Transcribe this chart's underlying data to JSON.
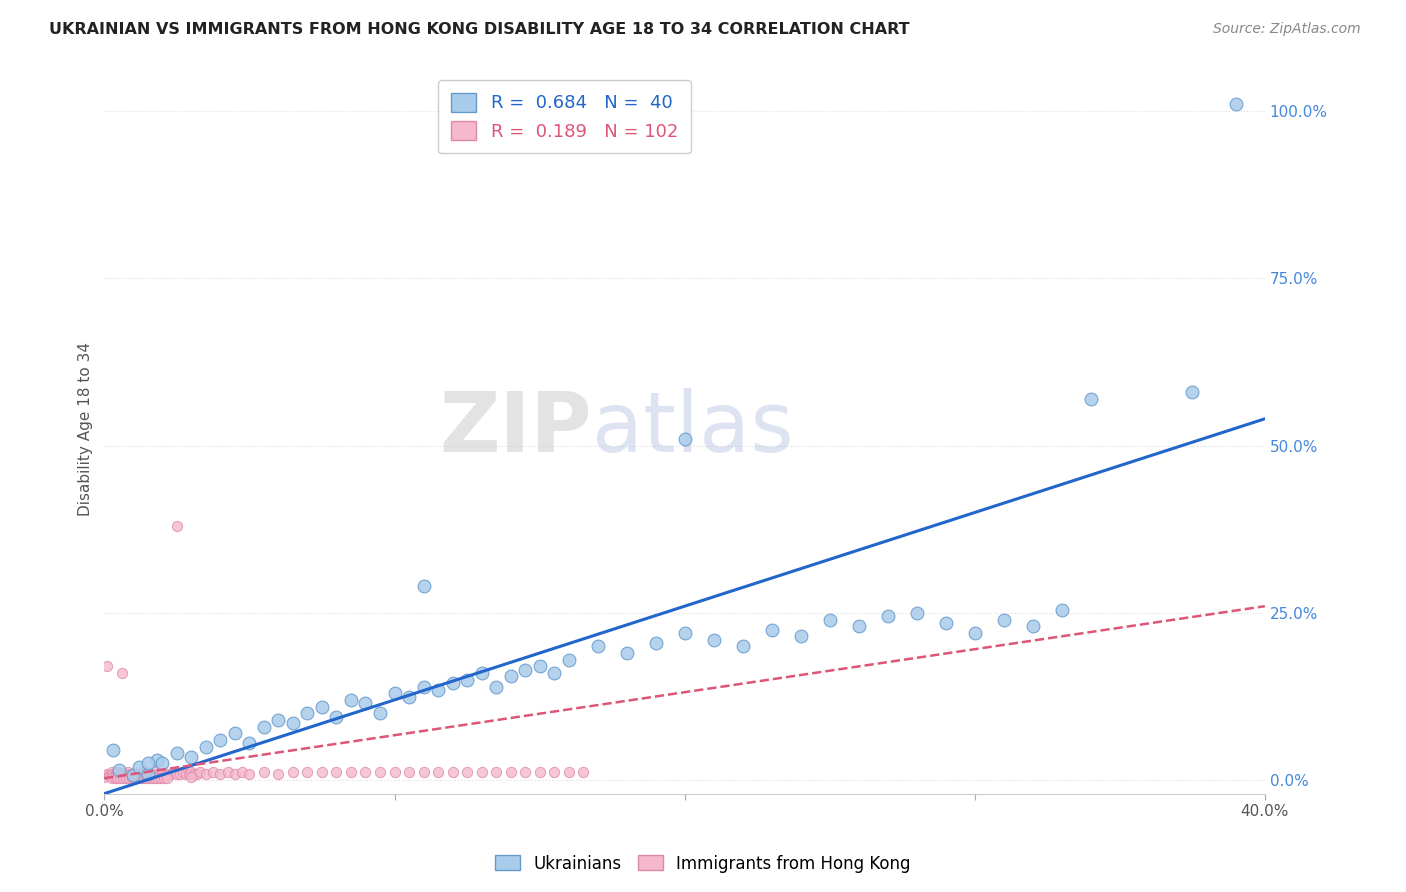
{
  "title": "UKRAINIAN VS IMMIGRANTS FROM HONG KONG DISABILITY AGE 18 TO 34 CORRELATION CHART",
  "source": "Source: ZipAtlas.com",
  "ylabel": "Disability Age 18 to 34",
  "ylabel_right_ticks": [
    "0.0%",
    "25.0%",
    "50.0%",
    "75.0%",
    "100.0%"
  ],
  "ylabel_right_vals": [
    0.0,
    25.0,
    50.0,
    75.0,
    100.0
  ],
  "xmin": 0.0,
  "xmax": 40.0,
  "ymin": -2.0,
  "ymax": 107.0,
  "watermark": "ZIPatlas",
  "ukrainians_scatter": [
    [
      0.5,
      1.5
    ],
    [
      1.0,
      0.8
    ],
    [
      1.2,
      2.0
    ],
    [
      1.5,
      1.0
    ],
    [
      1.8,
      3.0
    ],
    [
      2.0,
      2.5
    ],
    [
      2.5,
      4.0
    ],
    [
      3.0,
      3.5
    ],
    [
      3.5,
      5.0
    ],
    [
      4.0,
      6.0
    ],
    [
      4.5,
      7.0
    ],
    [
      5.0,
      5.5
    ],
    [
      5.5,
      8.0
    ],
    [
      6.0,
      9.0
    ],
    [
      6.5,
      8.5
    ],
    [
      7.0,
      10.0
    ],
    [
      7.5,
      11.0
    ],
    [
      8.0,
      9.5
    ],
    [
      8.5,
      12.0
    ],
    [
      9.0,
      11.5
    ],
    [
      9.5,
      10.0
    ],
    [
      10.0,
      13.0
    ],
    [
      10.5,
      12.5
    ],
    [
      11.0,
      14.0
    ],
    [
      11.5,
      13.5
    ],
    [
      12.0,
      14.5
    ],
    [
      12.5,
      15.0
    ],
    [
      13.0,
      16.0
    ],
    [
      13.5,
      14.0
    ],
    [
      14.0,
      15.5
    ],
    [
      14.5,
      16.5
    ],
    [
      15.0,
      17.0
    ],
    [
      15.5,
      16.0
    ],
    [
      16.0,
      18.0
    ],
    [
      17.0,
      20.0
    ],
    [
      18.0,
      19.0
    ],
    [
      19.0,
      20.5
    ],
    [
      20.0,
      22.0
    ],
    [
      21.0,
      21.0
    ],
    [
      22.0,
      20.0
    ],
    [
      23.0,
      22.5
    ],
    [
      24.0,
      21.5
    ],
    [
      25.0,
      24.0
    ],
    [
      26.0,
      23.0
    ],
    [
      27.0,
      24.5
    ],
    [
      28.0,
      25.0
    ],
    [
      29.0,
      23.5
    ],
    [
      30.0,
      22.0
    ],
    [
      31.0,
      24.0
    ],
    [
      32.0,
      23.0
    ],
    [
      33.0,
      25.5
    ],
    [
      11.0,
      29.0
    ],
    [
      34.0,
      57.0
    ],
    [
      37.5,
      58.0
    ],
    [
      20.0,
      51.0
    ],
    [
      0.3,
      4.5
    ],
    [
      1.5,
      2.5
    ],
    [
      39.0,
      101.0
    ]
  ],
  "hk_scatter": [
    [
      0.0,
      0.5
    ],
    [
      0.1,
      1.0
    ],
    [
      0.15,
      0.8
    ],
    [
      0.2,
      0.6
    ],
    [
      0.25,
      1.2
    ],
    [
      0.3,
      0.9
    ],
    [
      0.35,
      0.7
    ],
    [
      0.4,
      1.1
    ],
    [
      0.45,
      1.3
    ],
    [
      0.5,
      0.8
    ],
    [
      0.6,
      0.9
    ],
    [
      0.65,
      1.1
    ],
    [
      0.7,
      0.7
    ],
    [
      0.75,
      1.0
    ],
    [
      0.8,
      1.2
    ],
    [
      0.85,
      0.8
    ],
    [
      0.9,
      0.7
    ],
    [
      0.95,
      1.0
    ],
    [
      1.0,
      0.8
    ],
    [
      1.1,
      0.7
    ],
    [
      1.15,
      1.0
    ],
    [
      1.2,
      0.8
    ],
    [
      1.25,
      0.7
    ],
    [
      1.3,
      1.0
    ],
    [
      1.35,
      1.2
    ],
    [
      1.4,
      0.8
    ],
    [
      1.45,
      0.7
    ],
    [
      1.5,
      1.0
    ],
    [
      1.55,
      0.8
    ],
    [
      1.6,
      0.7
    ],
    [
      1.65,
      1.0
    ],
    [
      1.7,
      1.2
    ],
    [
      1.75,
      0.8
    ],
    [
      1.8,
      0.7
    ],
    [
      1.85,
      1.0
    ],
    [
      1.9,
      0.8
    ],
    [
      2.0,
      1.0
    ],
    [
      2.1,
      0.8
    ],
    [
      2.2,
      1.0
    ],
    [
      2.3,
      1.0
    ],
    [
      2.4,
      1.2
    ],
    [
      2.5,
      1.0
    ],
    [
      2.6,
      1.0
    ],
    [
      2.7,
      1.2
    ],
    [
      2.8,
      1.0
    ],
    [
      2.9,
      1.0
    ],
    [
      3.0,
      1.2
    ],
    [
      3.1,
      1.0
    ],
    [
      3.2,
      1.0
    ],
    [
      3.3,
      1.2
    ],
    [
      3.5,
      1.0
    ],
    [
      3.75,
      1.2
    ],
    [
      4.0,
      1.0
    ],
    [
      4.25,
      1.2
    ],
    [
      4.5,
      1.0
    ],
    [
      4.75,
      1.2
    ],
    [
      5.0,
      1.0
    ],
    [
      5.5,
      1.2
    ],
    [
      6.0,
      1.0
    ],
    [
      6.5,
      1.2
    ],
    [
      7.0,
      1.2
    ],
    [
      7.5,
      1.2
    ],
    [
      8.0,
      1.2
    ],
    [
      8.5,
      1.2
    ],
    [
      9.0,
      1.2
    ],
    [
      9.5,
      1.2
    ],
    [
      10.0,
      1.2
    ],
    [
      10.5,
      1.2
    ],
    [
      11.0,
      1.2
    ],
    [
      11.5,
      1.2
    ],
    [
      12.0,
      1.2
    ],
    [
      12.5,
      1.2
    ],
    [
      13.0,
      1.2
    ],
    [
      13.5,
      1.2
    ],
    [
      14.0,
      1.2
    ],
    [
      14.5,
      1.2
    ],
    [
      15.0,
      1.2
    ],
    [
      15.5,
      1.2
    ],
    [
      16.0,
      1.2
    ],
    [
      16.5,
      1.2
    ],
    [
      0.25,
      0.3
    ],
    [
      0.35,
      0.3
    ],
    [
      0.45,
      0.3
    ],
    [
      0.55,
      0.3
    ],
    [
      0.65,
      0.3
    ],
    [
      0.75,
      0.3
    ],
    [
      0.85,
      0.3
    ],
    [
      0.95,
      0.3
    ],
    [
      1.05,
      0.3
    ],
    [
      1.15,
      0.3
    ],
    [
      1.25,
      0.3
    ],
    [
      1.35,
      0.3
    ],
    [
      1.45,
      0.3
    ],
    [
      1.55,
      0.3
    ],
    [
      1.65,
      0.3
    ],
    [
      1.75,
      0.3
    ],
    [
      1.85,
      0.3
    ],
    [
      1.95,
      0.3
    ],
    [
      2.05,
      0.3
    ],
    [
      2.15,
      0.3
    ],
    [
      2.5,
      38.0
    ],
    [
      0.1,
      17.0
    ],
    [
      0.6,
      16.0
    ],
    [
      3.0,
      0.5
    ]
  ],
  "blue_line_x": [
    0.0,
    40.0
  ],
  "blue_line_y": [
    -2.0,
    54.0
  ],
  "pink_line_x": [
    0.0,
    40.0
  ],
  "pink_line_y": [
    0.3,
    26.0
  ],
  "bg_color": "#ffffff",
  "scatter_blue_color": "#a8ccea",
  "scatter_blue_edge": "#6699cc",
  "scatter_pink_color": "#f5b8cc",
  "scatter_pink_edge": "#dd88aa",
  "line_blue_color": "#2266cc",
  "line_pink_color": "#dd5577",
  "grid_color": "#dddddd",
  "grid_style": "dotted",
  "title_color": "#222222",
  "axis_label_color": "#555555",
  "right_tick_color": "#4488dd",
  "bottom_tick_color": "#555555"
}
